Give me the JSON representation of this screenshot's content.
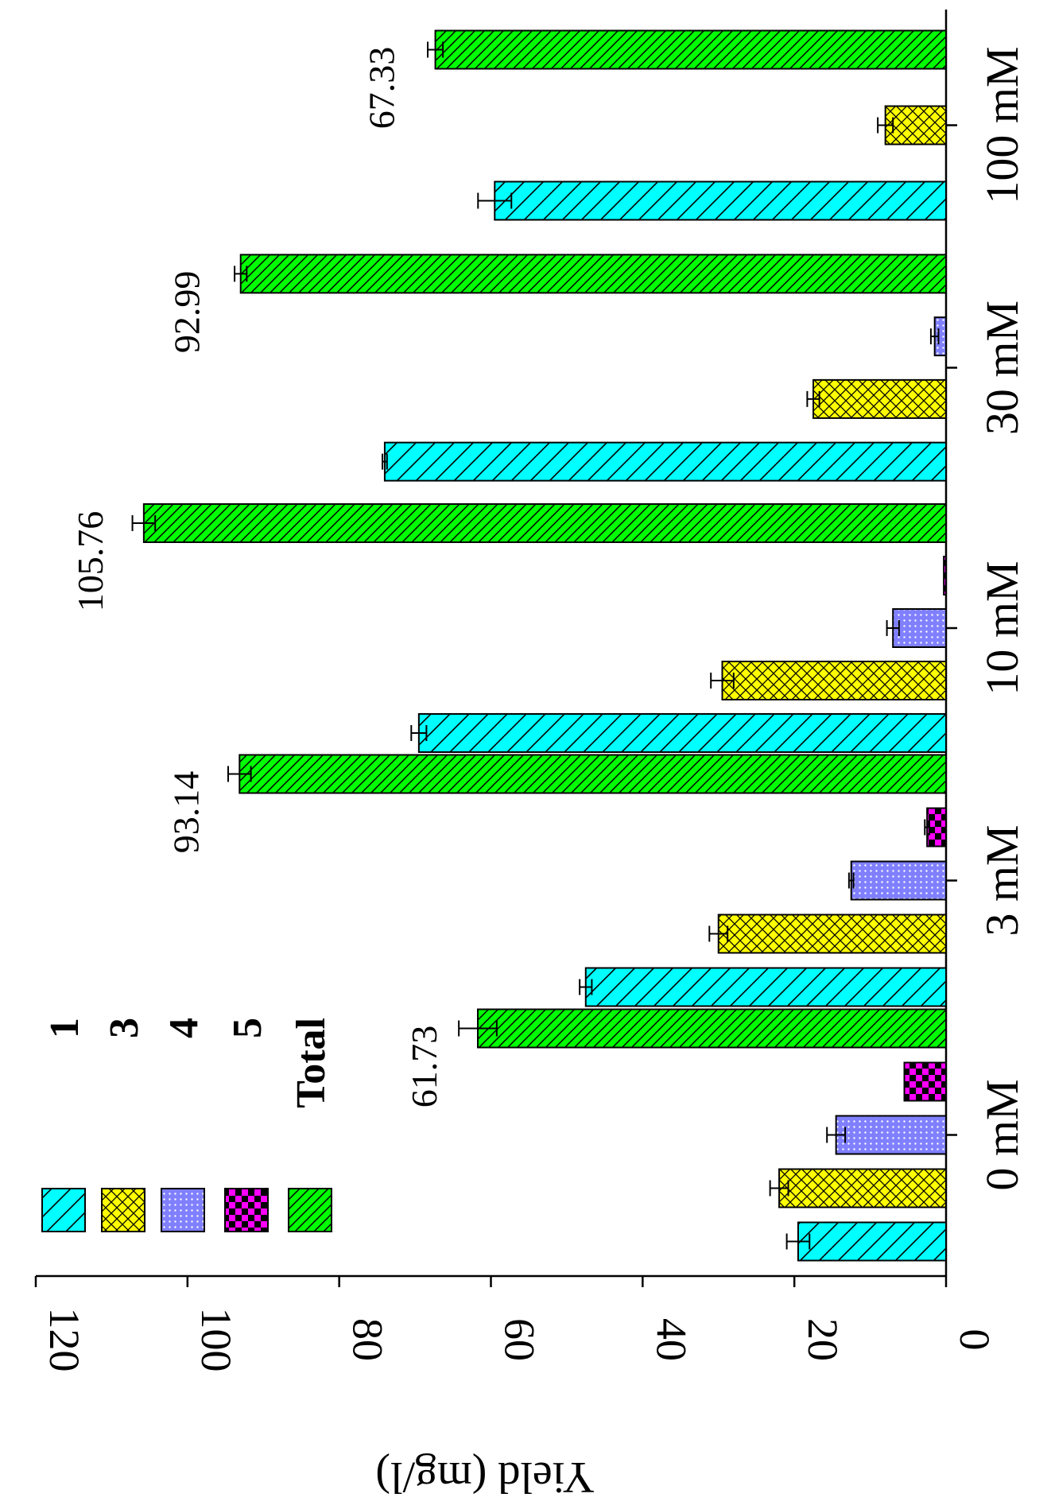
{
  "chart_data": {
    "type": "bar",
    "orientation": "rotated-90-clockwise",
    "title": "",
    "ylabel": "Yield (mg/l)",
    "xlabel": "",
    "ylim": [
      0,
      120
    ],
    "yticks": [
      0,
      20,
      40,
      60,
      80,
      100,
      120
    ],
    "categories": [
      "0 mM",
      "3 mM",
      "10 mM",
      "30 mM",
      "100 mM"
    ],
    "legend_position": "top-left",
    "series": [
      {
        "name": "1",
        "color": "#00ffff",
        "pattern": "diagonal-hatch",
        "values": [
          19.5,
          47.5,
          69.5,
          74.0,
          59.5
        ],
        "errors": [
          1.5,
          0.8,
          1.0,
          0.3,
          2.2
        ]
      },
      {
        "name": "3",
        "color": "#ffff00",
        "pattern": "crosshatch",
        "values": [
          22.0,
          30.0,
          29.5,
          17.5,
          8.0
        ],
        "errors": [
          1.2,
          1.2,
          1.5,
          0.8,
          1.0
        ]
      },
      {
        "name": "4",
        "color": "#8080ff",
        "pattern": "dots",
        "values": [
          14.5,
          12.5,
          7.0,
          1.5,
          null
        ],
        "errors": [
          1.2,
          0.3,
          0.8,
          0.5,
          null
        ]
      },
      {
        "name": "5",
        "color": "#ff00ff",
        "pattern": "checker",
        "values": [
          5.5,
          2.5,
          0.3,
          null,
          null
        ],
        "errors": [
          0,
          0.3,
          0,
          null,
          null
        ]
      },
      {
        "name": "Total",
        "color": "#00ff00",
        "pattern": "dense-diagonal",
        "values": [
          61.73,
          93.14,
          105.76,
          92.99,
          67.33
        ],
        "errors": [
          2.5,
          1.5,
          1.5,
          0.8,
          1.0
        ]
      }
    ],
    "annotations": [
      "61.73",
      "93.14",
      "105.76",
      "92.99",
      "67.33"
    ]
  }
}
